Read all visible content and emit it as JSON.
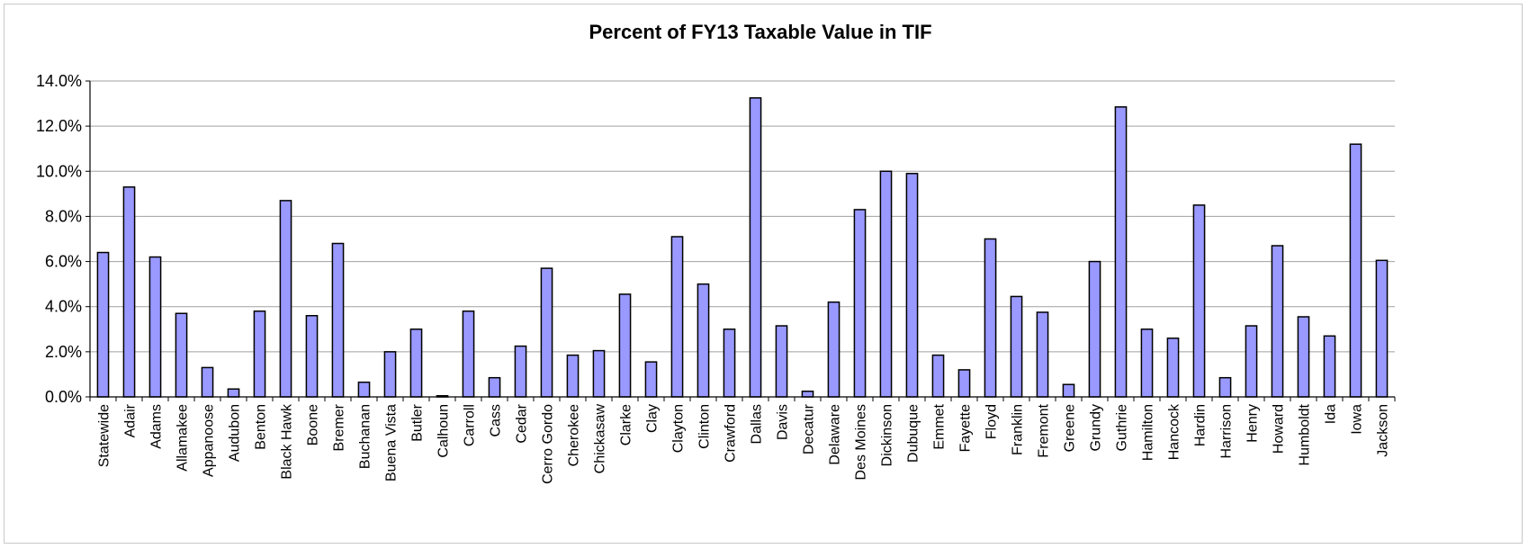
{
  "chart_data": {
    "type": "bar",
    "title": "Percent of FY13 Taxable Value in TIF",
    "xlabel": "",
    "ylabel": "",
    "ylim": [
      0,
      14
    ],
    "y_ticks": [
      "0.0%",
      "2.0%",
      "4.0%",
      "6.0%",
      "8.0%",
      "10.0%",
      "12.0%",
      "14.0%"
    ],
    "grid": true,
    "legend": "none",
    "bar_color": "#9999ff",
    "bar_stroke": "#000000",
    "categories": [
      "Statewide",
      "Adair",
      "Adams",
      "Allamakee",
      "Appanoose",
      "Audubon",
      "Benton",
      "Black Hawk",
      "Boone",
      "Bremer",
      "Buchanan",
      "Buena Vista",
      "Butler",
      "Calhoun",
      "Carroll",
      "Cass",
      "Cedar",
      "Cerro Gordo",
      "Cherokee",
      "Chickasaw",
      "Clarke",
      "Clay",
      "Clayton",
      "Clinton",
      "Crawford",
      "Dallas",
      "Davis",
      "Decatur",
      "Delaware",
      "Des Moines",
      "Dickinson",
      "Dubuque",
      "Emmet",
      "Fayette",
      "Floyd",
      "Franklin",
      "Fremont",
      "Greene",
      "Grundy",
      "Guthrie",
      "Hamilton",
      "Hancock",
      "Hardin",
      "Harrison",
      "Henry",
      "Howard",
      "Humboldt",
      "Ida",
      "Iowa",
      "Jackson"
    ],
    "values": [
      6.4,
      9.3,
      6.2,
      3.7,
      1.3,
      0.35,
      3.8,
      8.7,
      3.6,
      6.8,
      0.65,
      2.0,
      3.0,
      0.05,
      3.8,
      0.85,
      2.25,
      5.7,
      1.85,
      2.05,
      4.55,
      1.55,
      7.1,
      5.0,
      3.0,
      13.25,
      3.15,
      0.25,
      4.2,
      8.3,
      10.0,
      9.9,
      1.85,
      1.2,
      7.0,
      4.45,
      3.75,
      0.55,
      6.0,
      12.85,
      3.0,
      2.6,
      8.5,
      0.85,
      3.15,
      6.7,
      3.55,
      2.7,
      11.2,
      6.05
    ]
  }
}
